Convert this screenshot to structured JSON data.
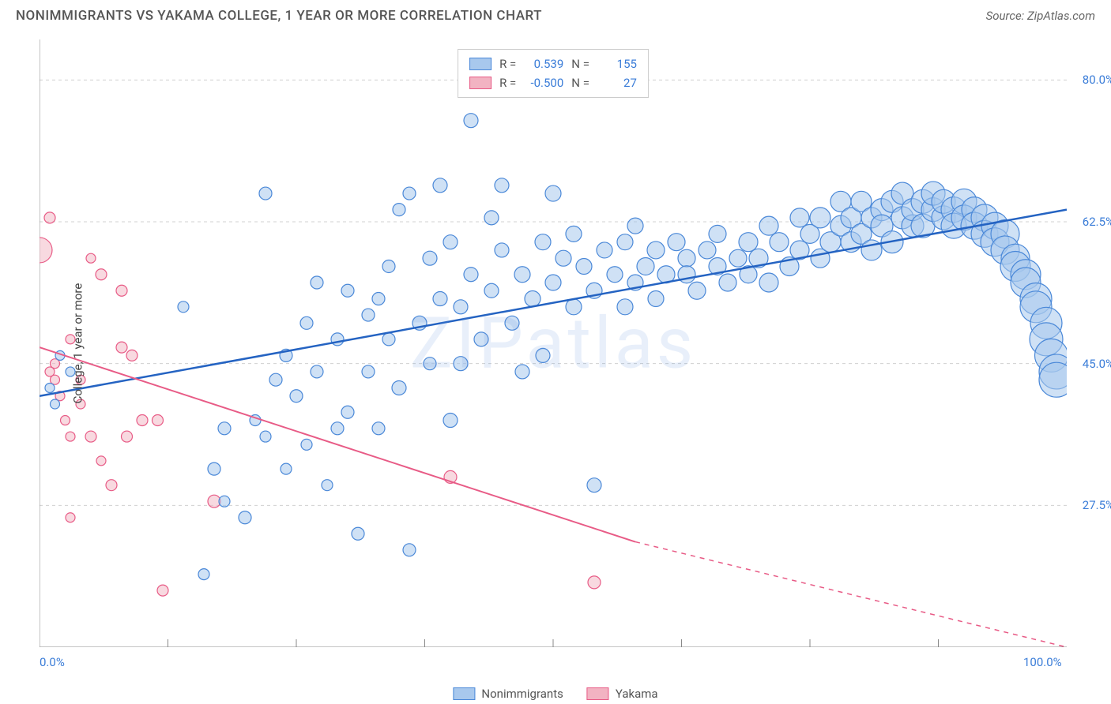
{
  "title": "NONIMMIGRANTS VS YAKAMA COLLEGE, 1 YEAR OR MORE CORRELATION CHART",
  "source": "Source: ZipAtlas.com",
  "watermark": "ZIPatlas",
  "y_axis_label": "College, 1 year or more",
  "chart": {
    "type": "scatter",
    "xlim": [
      0,
      100
    ],
    "ylim": [
      10,
      85
    ],
    "x_ticks": [
      0,
      100
    ],
    "x_tick_labels": [
      "0.0%",
      "100.0%"
    ],
    "y_ticks": [
      27.5,
      45.0,
      62.5,
      80.0
    ],
    "y_tick_labels": [
      "27.5%",
      "45.0%",
      "62.5%",
      "80.0%"
    ],
    "x_grid_positions": [
      12.5,
      25,
      37.5,
      50,
      62.5,
      75,
      87.5
    ],
    "background_color": "#ffffff",
    "grid_color": "#d0d0d0",
    "axis_color": "#888888",
    "series": {
      "nonimmigrants": {
        "label": "Nonimmigrants",
        "fill_color": "#a8c8ed",
        "stroke_color": "#4a88d8",
        "line_color": "#2463c2",
        "fill_opacity": 0.55,
        "r_value": "0.539",
        "n_value": "155",
        "trend": {
          "x1": 0,
          "y1": 41,
          "x2": 100,
          "y2": 64
        },
        "points": [
          {
            "x": 1,
            "y": 42,
            "r": 6
          },
          {
            "x": 1.5,
            "y": 40,
            "r": 6
          },
          {
            "x": 2,
            "y": 46,
            "r": 6
          },
          {
            "x": 3,
            "y": 44,
            "r": 6
          },
          {
            "x": 14,
            "y": 52,
            "r": 7
          },
          {
            "x": 16,
            "y": 19,
            "r": 7
          },
          {
            "x": 17,
            "y": 32,
            "r": 8
          },
          {
            "x": 18,
            "y": 37,
            "r": 8
          },
          {
            "x": 18,
            "y": 28,
            "r": 7
          },
          {
            "x": 20,
            "y": 26,
            "r": 8
          },
          {
            "x": 21,
            "y": 38,
            "r": 7
          },
          {
            "x": 22,
            "y": 36,
            "r": 7
          },
          {
            "x": 22,
            "y": 66,
            "r": 8
          },
          {
            "x": 23,
            "y": 43,
            "r": 8
          },
          {
            "x": 24,
            "y": 46,
            "r": 8
          },
          {
            "x": 24,
            "y": 32,
            "r": 7
          },
          {
            "x": 25,
            "y": 41,
            "r": 8
          },
          {
            "x": 26,
            "y": 35,
            "r": 7
          },
          {
            "x": 26,
            "y": 50,
            "r": 8
          },
          {
            "x": 27,
            "y": 55,
            "r": 8
          },
          {
            "x": 27,
            "y": 44,
            "r": 8
          },
          {
            "x": 28,
            "y": 30,
            "r": 7
          },
          {
            "x": 29,
            "y": 48,
            "r": 8
          },
          {
            "x": 29,
            "y": 37,
            "r": 8
          },
          {
            "x": 30,
            "y": 54,
            "r": 8
          },
          {
            "x": 30,
            "y": 39,
            "r": 8
          },
          {
            "x": 31,
            "y": 24,
            "r": 8
          },
          {
            "x": 32,
            "y": 44,
            "r": 8
          },
          {
            "x": 32,
            "y": 51,
            "r": 8
          },
          {
            "x": 33,
            "y": 53,
            "r": 8
          },
          {
            "x": 33,
            "y": 37,
            "r": 8
          },
          {
            "x": 34,
            "y": 48,
            "r": 8
          },
          {
            "x": 34,
            "y": 57,
            "r": 8
          },
          {
            "x": 35,
            "y": 64,
            "r": 8
          },
          {
            "x": 35,
            "y": 42,
            "r": 9
          },
          {
            "x": 36,
            "y": 22,
            "r": 8
          },
          {
            "x": 36,
            "y": 66,
            "r": 8
          },
          {
            "x": 37,
            "y": 50,
            "r": 9
          },
          {
            "x": 38,
            "y": 58,
            "r": 9
          },
          {
            "x": 38,
            "y": 45,
            "r": 8
          },
          {
            "x": 39,
            "y": 53,
            "r": 9
          },
          {
            "x": 39,
            "y": 67,
            "r": 9
          },
          {
            "x": 40,
            "y": 38,
            "r": 9
          },
          {
            "x": 40,
            "y": 60,
            "r": 9
          },
          {
            "x": 41,
            "y": 52,
            "r": 9
          },
          {
            "x": 41,
            "y": 45,
            "r": 9
          },
          {
            "x": 42,
            "y": 56,
            "r": 9
          },
          {
            "x": 42,
            "y": 75,
            "r": 9
          },
          {
            "x": 43,
            "y": 48,
            "r": 9
          },
          {
            "x": 44,
            "y": 63,
            "r": 9
          },
          {
            "x": 44,
            "y": 54,
            "r": 9
          },
          {
            "x": 45,
            "y": 59,
            "r": 9
          },
          {
            "x": 45,
            "y": 67,
            "r": 9
          },
          {
            "x": 46,
            "y": 50,
            "r": 9
          },
          {
            "x": 47,
            "y": 56,
            "r": 10
          },
          {
            "x": 47,
            "y": 44,
            "r": 9
          },
          {
            "x": 48,
            "y": 53,
            "r": 10
          },
          {
            "x": 49,
            "y": 60,
            "r": 10
          },
          {
            "x": 49,
            "y": 46,
            "r": 9
          },
          {
            "x": 50,
            "y": 55,
            "r": 10
          },
          {
            "x": 50,
            "y": 66,
            "r": 10
          },
          {
            "x": 51,
            "y": 58,
            "r": 10
          },
          {
            "x": 52,
            "y": 52,
            "r": 10
          },
          {
            "x": 52,
            "y": 61,
            "r": 10
          },
          {
            "x": 53,
            "y": 57,
            "r": 10
          },
          {
            "x": 54,
            "y": 54,
            "r": 10
          },
          {
            "x": 54,
            "y": 30,
            "r": 9
          },
          {
            "x": 55,
            "y": 59,
            "r": 10
          },
          {
            "x": 56,
            "y": 56,
            "r": 10
          },
          {
            "x": 57,
            "y": 52,
            "r": 10
          },
          {
            "x": 57,
            "y": 60,
            "r": 10
          },
          {
            "x": 58,
            "y": 55,
            "r": 10
          },
          {
            "x": 58,
            "y": 62,
            "r": 10
          },
          {
            "x": 59,
            "y": 57,
            "r": 11
          },
          {
            "x": 60,
            "y": 59,
            "r": 11
          },
          {
            "x": 60,
            "y": 53,
            "r": 10
          },
          {
            "x": 61,
            "y": 56,
            "r": 11
          },
          {
            "x": 62,
            "y": 60,
            "r": 11
          },
          {
            "x": 63,
            "y": 58,
            "r": 11
          },
          {
            "x": 63,
            "y": 56,
            "r": 11
          },
          {
            "x": 64,
            "y": 54,
            "r": 11
          },
          {
            "x": 65,
            "y": 59,
            "r": 11
          },
          {
            "x": 66,
            "y": 57,
            "r": 11
          },
          {
            "x": 66,
            "y": 61,
            "r": 11
          },
          {
            "x": 67,
            "y": 55,
            "r": 11
          },
          {
            "x": 68,
            "y": 58,
            "r": 11
          },
          {
            "x": 69,
            "y": 56,
            "r": 11
          },
          {
            "x": 69,
            "y": 60,
            "r": 12
          },
          {
            "x": 70,
            "y": 58,
            "r": 12
          },
          {
            "x": 71,
            "y": 62,
            "r": 12
          },
          {
            "x": 71,
            "y": 55,
            "r": 12
          },
          {
            "x": 72,
            "y": 60,
            "r": 12
          },
          {
            "x": 73,
            "y": 57,
            "r": 12
          },
          {
            "x": 74,
            "y": 63,
            "r": 12
          },
          {
            "x": 74,
            "y": 59,
            "r": 12
          },
          {
            "x": 75,
            "y": 61,
            "r": 12
          },
          {
            "x": 76,
            "y": 63,
            "r": 13
          },
          {
            "x": 76,
            "y": 58,
            "r": 12
          },
          {
            "x": 77,
            "y": 60,
            "r": 13
          },
          {
            "x": 78,
            "y": 62,
            "r": 13
          },
          {
            "x": 78,
            "y": 65,
            "r": 13
          },
          {
            "x": 79,
            "y": 60,
            "r": 13
          },
          {
            "x": 79,
            "y": 63,
            "r": 13
          },
          {
            "x": 80,
            "y": 65,
            "r": 13
          },
          {
            "x": 80,
            "y": 61,
            "r": 13
          },
          {
            "x": 81,
            "y": 63,
            "r": 13
          },
          {
            "x": 81,
            "y": 59,
            "r": 13
          },
          {
            "x": 82,
            "y": 64,
            "r": 14
          },
          {
            "x": 82,
            "y": 62,
            "r": 14
          },
          {
            "x": 83,
            "y": 65,
            "r": 14
          },
          {
            "x": 83,
            "y": 60,
            "r": 14
          },
          {
            "x": 84,
            "y": 63,
            "r": 14
          },
          {
            "x": 84,
            "y": 66,
            "r": 14
          },
          {
            "x": 85,
            "y": 62,
            "r": 14
          },
          {
            "x": 85,
            "y": 64,
            "r": 14
          },
          {
            "x": 86,
            "y": 65,
            "r": 15
          },
          {
            "x": 86,
            "y": 62,
            "r": 15
          },
          {
            "x": 87,
            "y": 64,
            "r": 15
          },
          {
            "x": 87,
            "y": 66,
            "r": 15
          },
          {
            "x": 88,
            "y": 63,
            "r": 15
          },
          {
            "x": 88,
            "y": 65,
            "r": 15
          },
          {
            "x": 89,
            "y": 64,
            "r": 16
          },
          {
            "x": 89,
            "y": 62,
            "r": 16
          },
          {
            "x": 90,
            "y": 65,
            "r": 16
          },
          {
            "x": 90,
            "y": 63,
            "r": 16
          },
          {
            "x": 91,
            "y": 64,
            "r": 16
          },
          {
            "x": 91,
            "y": 62,
            "r": 17
          },
          {
            "x": 92,
            "y": 63,
            "r": 17
          },
          {
            "x": 92,
            "y": 61,
            "r": 17
          },
          {
            "x": 93,
            "y": 62,
            "r": 17
          },
          {
            "x": 93,
            "y": 60,
            "r": 18
          },
          {
            "x": 94,
            "y": 61,
            "r": 18
          },
          {
            "x": 94,
            "y": 59,
            "r": 18
          },
          {
            "x": 95,
            "y": 58,
            "r": 18
          },
          {
            "x": 95,
            "y": 57,
            "r": 19
          },
          {
            "x": 96,
            "y": 56,
            "r": 19
          },
          {
            "x": 96,
            "y": 55,
            "r": 19
          },
          {
            "x": 97,
            "y": 53,
            "r": 20
          },
          {
            "x": 97,
            "y": 52,
            "r": 20
          },
          {
            "x": 98,
            "y": 50,
            "r": 20
          },
          {
            "x": 98,
            "y": 48,
            "r": 21
          },
          {
            "x": 98.5,
            "y": 46,
            "r": 21
          },
          {
            "x": 99,
            "y": 44,
            "r": 22
          },
          {
            "x": 99,
            "y": 43,
            "r": 22
          }
        ]
      },
      "yakama": {
        "label": "Yakama",
        "fill_color": "#f2b3c2",
        "stroke_color": "#e85b86",
        "line_color": "#e85b86",
        "fill_opacity": 0.5,
        "r_value": "-0.500",
        "n_value": "27",
        "trend_solid": {
          "x1": 0,
          "y1": 47,
          "x2": 58,
          "y2": 23
        },
        "trend_dashed": {
          "x1": 58,
          "y1": 23,
          "x2": 100,
          "y2": 10
        },
        "points": [
          {
            "x": 0,
            "y": 59,
            "r": 16
          },
          {
            "x": 1,
            "y": 44,
            "r": 6
          },
          {
            "x": 1,
            "y": 63,
            "r": 7
          },
          {
            "x": 1.5,
            "y": 45,
            "r": 6
          },
          {
            "x": 1.5,
            "y": 43,
            "r": 6
          },
          {
            "x": 2,
            "y": 41,
            "r": 6
          },
          {
            "x": 2.5,
            "y": 38,
            "r": 6
          },
          {
            "x": 3,
            "y": 36,
            "r": 6
          },
          {
            "x": 3,
            "y": 48,
            "r": 6
          },
          {
            "x": 3,
            "y": 26,
            "r": 6
          },
          {
            "x": 4,
            "y": 43,
            "r": 6
          },
          {
            "x": 4,
            "y": 40,
            "r": 6
          },
          {
            "x": 5,
            "y": 58,
            "r": 6
          },
          {
            "x": 5,
            "y": 36,
            "r": 7
          },
          {
            "x": 6,
            "y": 56,
            "r": 7
          },
          {
            "x": 6,
            "y": 33,
            "r": 6
          },
          {
            "x": 7,
            "y": 30,
            "r": 7
          },
          {
            "x": 8,
            "y": 54,
            "r": 7
          },
          {
            "x": 8,
            "y": 47,
            "r": 7
          },
          {
            "x": 8.5,
            "y": 36,
            "r": 7
          },
          {
            "x": 9,
            "y": 46,
            "r": 7
          },
          {
            "x": 10,
            "y": 38,
            "r": 7
          },
          {
            "x": 11.5,
            "y": 38,
            "r": 7
          },
          {
            "x": 12,
            "y": 17,
            "r": 7
          },
          {
            "x": 17,
            "y": 28,
            "r": 8
          },
          {
            "x": 40,
            "y": 31,
            "r": 8
          },
          {
            "x": 54,
            "y": 18,
            "r": 8
          }
        ]
      }
    }
  },
  "stats_legend": {
    "r_label": "R =",
    "n_label": "N ="
  },
  "bottom_legend": {
    "series1": "Nonimmigrants",
    "series2": "Yakama"
  }
}
